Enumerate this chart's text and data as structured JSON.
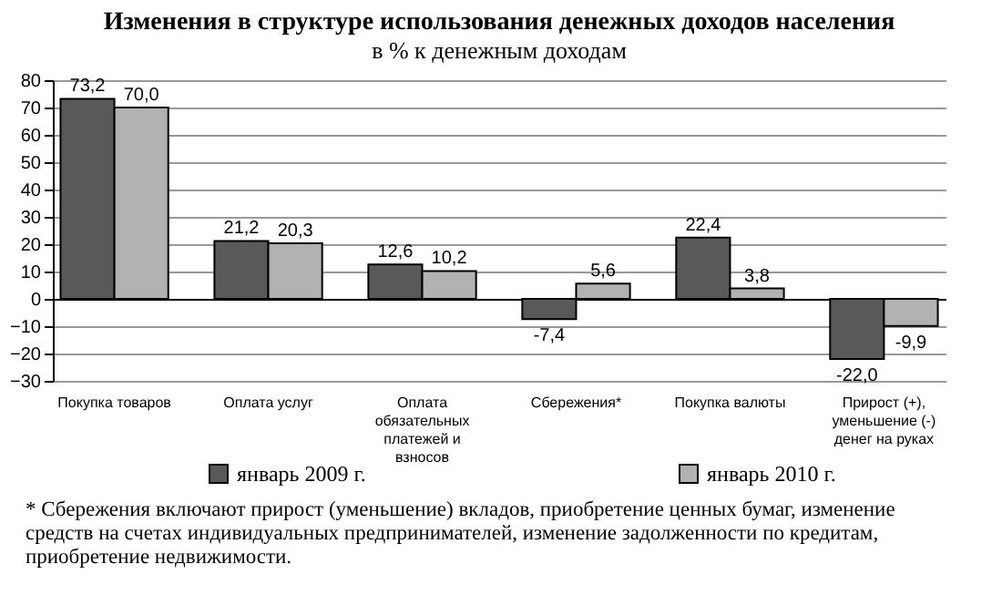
{
  "chart_data": {
    "type": "bar",
    "title": "Изменения в структуре использования денежных доходов населения",
    "subtitle": "в % к денежным доходам",
    "categories": [
      "Покупка товаров",
      "Оплата услуг",
      "Оплата обязательных платежей и взносов",
      "Сбережения*",
      "Покупка валюты",
      "Прирост (+), уменьшение (-) денег на руках"
    ],
    "series": [
      {
        "name": "январь 2009 г.",
        "color": "#595959",
        "values": [
          73.2,
          21.2,
          12.6,
          -7.4,
          22.4,
          -22.0
        ],
        "value_labels": [
          "73,2",
          "21,2",
          "12,6",
          "-7,4",
          "22,4",
          "-22,0"
        ]
      },
      {
        "name": "январь 2010 г.",
        "color": "#b2b2b2",
        "values": [
          70.0,
          20.3,
          10.2,
          5.6,
          3.8,
          -9.9
        ],
        "value_labels": [
          "70,0",
          "20,3",
          "10,2",
          "5,6",
          "3,8",
          "-9,9"
        ]
      }
    ],
    "ylim": [
      -30,
      80
    ],
    "yticks": [
      -30,
      -20,
      -10,
      0,
      10,
      20,
      30,
      40,
      50,
      60,
      70,
      80
    ],
    "grid": "y",
    "legend": "bottom",
    "annotations": [
      "* Сбережения включают прирост (уменьшение) вкладов, приобретение ценных бумаг, изменение средств на счетах индивидуальных предпринимателей, изменение задолженности по кредитам, приобретение недвижимости."
    ]
  }
}
